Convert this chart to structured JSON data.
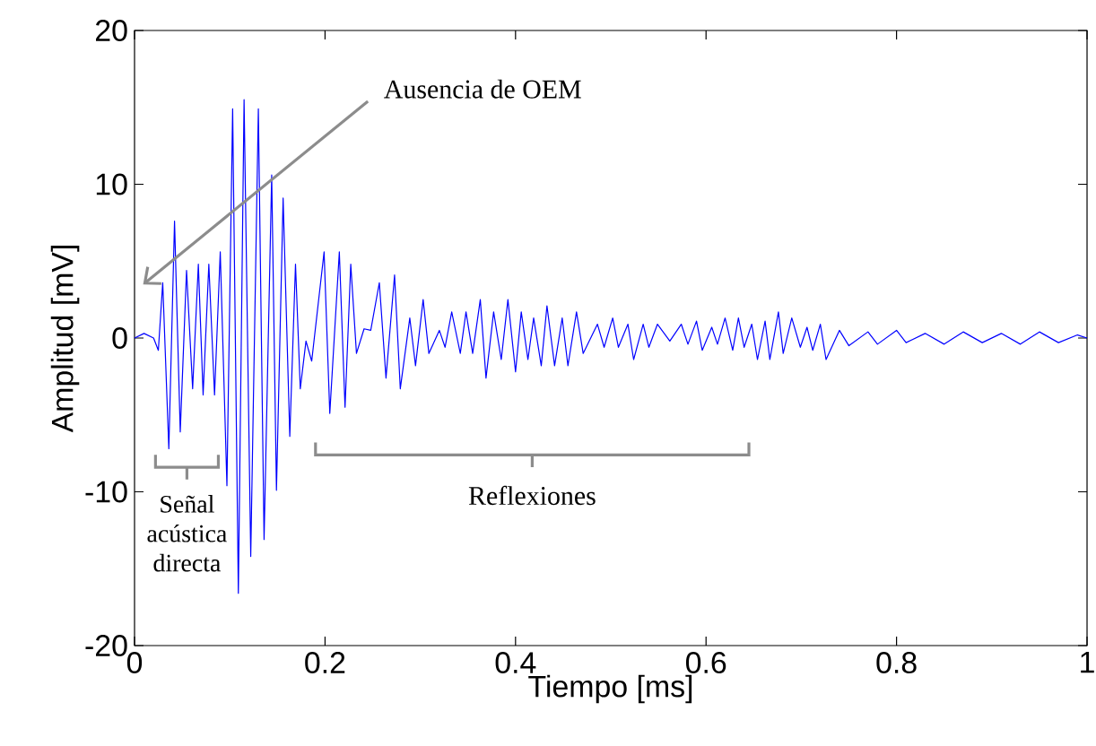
{
  "chart_data": {
    "type": "line",
    "xlabel": "Tiempo [ms]",
    "ylabel": "Amplitud [mV]",
    "xlim": [
      0,
      1
    ],
    "ylim": [
      -20,
      20
    ],
    "xticks": [
      0,
      0.2,
      0.4,
      0.6,
      0.8,
      1
    ],
    "yticks": [
      -20,
      -10,
      0,
      10,
      20
    ],
    "grid": false,
    "marker": "none",
    "line_style": "solid",
    "annotations": [
      "Ausencia de OEM",
      "Señal acústica directa",
      "Reflexiones"
    ],
    "series": [
      {
        "color": "#0000ff",
        "x": [
          0,
          0.01,
          0.02,
          0.025,
          0.0296,
          0.036,
          0.042,
          0.048,
          0.0546,
          0.061,
          0.067,
          0.072,
          0.078,
          0.084,
          0.09,
          0.097,
          0.103,
          0.109,
          0.115,
          0.122,
          0.13,
          0.136,
          0.144,
          0.149,
          0.156,
          0.163,
          0.169,
          0.174,
          0.18,
          0.186,
          0.199,
          0.205,
          0.215,
          0.221,
          0.227,
          0.233,
          0.241,
          0.248,
          0.257,
          0.264,
          0.273,
          0.279,
          0.289,
          0.295,
          0.303,
          0.309,
          0.32,
          0.326,
          0.333,
          0.342,
          0.348,
          0.355,
          0.363,
          0.369,
          0.377,
          0.385,
          0.392,
          0.4,
          0.406,
          0.413,
          0.419,
          0.427,
          0.433,
          0.441,
          0.449,
          0.455,
          0.464,
          0.471,
          0.486,
          0.493,
          0.502,
          0.508,
          0.518,
          0.524,
          0.534,
          0.54,
          0.549,
          0.562,
          0.574,
          0.581,
          0.59,
          0.596,
          0.606,
          0.612,
          0.62,
          0.628,
          0.634,
          0.64,
          0.648,
          0.654,
          0.662,
          0.667,
          0.676,
          0.681,
          0.69,
          0.699,
          0.706,
          0.712,
          0.72,
          0.726,
          0.74,
          0.75,
          0.77,
          0.78,
          0.8,
          0.81,
          0.83,
          0.85,
          0.87,
          0.89,
          0.91,
          0.93,
          0.95,
          0.97,
          0.99,
          1
        ],
        "values": [
          0,
          0.3,
          0,
          -0.8,
          3.6,
          -7.2,
          7.6,
          -6.1,
          4.4,
          -3.3,
          4.8,
          -3.7,
          4.8,
          -3.7,
          5.6,
          -9.6,
          14.9,
          -16.6,
          15.5,
          -14.2,
          14.9,
          -13.1,
          10.6,
          -9.9,
          9.1,
          -6.4,
          4.8,
          -3.3,
          -0.2,
          -1.5,
          5.6,
          -4.9,
          5.6,
          -4.5,
          4.8,
          -1,
          0.6,
          0.5,
          3.6,
          -2.6,
          4.1,
          -3.3,
          1.3,
          -1.8,
          2.5,
          -1,
          0.5,
          -0.6,
          1.7,
          -1,
          1.7,
          -1,
          2.5,
          -2.6,
          1.7,
          -1.4,
          2.5,
          -2.2,
          1.7,
          -1.4,
          1.3,
          -1.8,
          2.1,
          -1.8,
          1.3,
          -1.8,
          1.7,
          -1,
          0.9,
          -0.6,
          1.3,
          -0.6,
          0.9,
          -1.4,
          0.9,
          -0.6,
          0.9,
          -0.2,
          0.9,
          -0.4,
          1.1,
          -0.8,
          0.7,
          -0.4,
          1.3,
          -0.8,
          1.3,
          -0.6,
          0.9,
          -1.4,
          1.1,
          -1.4,
          1.7,
          -1,
          1.3,
          -0.6,
          0.7,
          -0.8,
          0.9,
          -1.4,
          0.5,
          -0.5,
          0.4,
          -0.4,
          0.5,
          -0.3,
          0.3,
          -0.4,
          0.4,
          -0.3,
          0.3,
          -0.4,
          0.4,
          -0.3,
          0.2,
          0
        ]
      }
    ]
  }
}
